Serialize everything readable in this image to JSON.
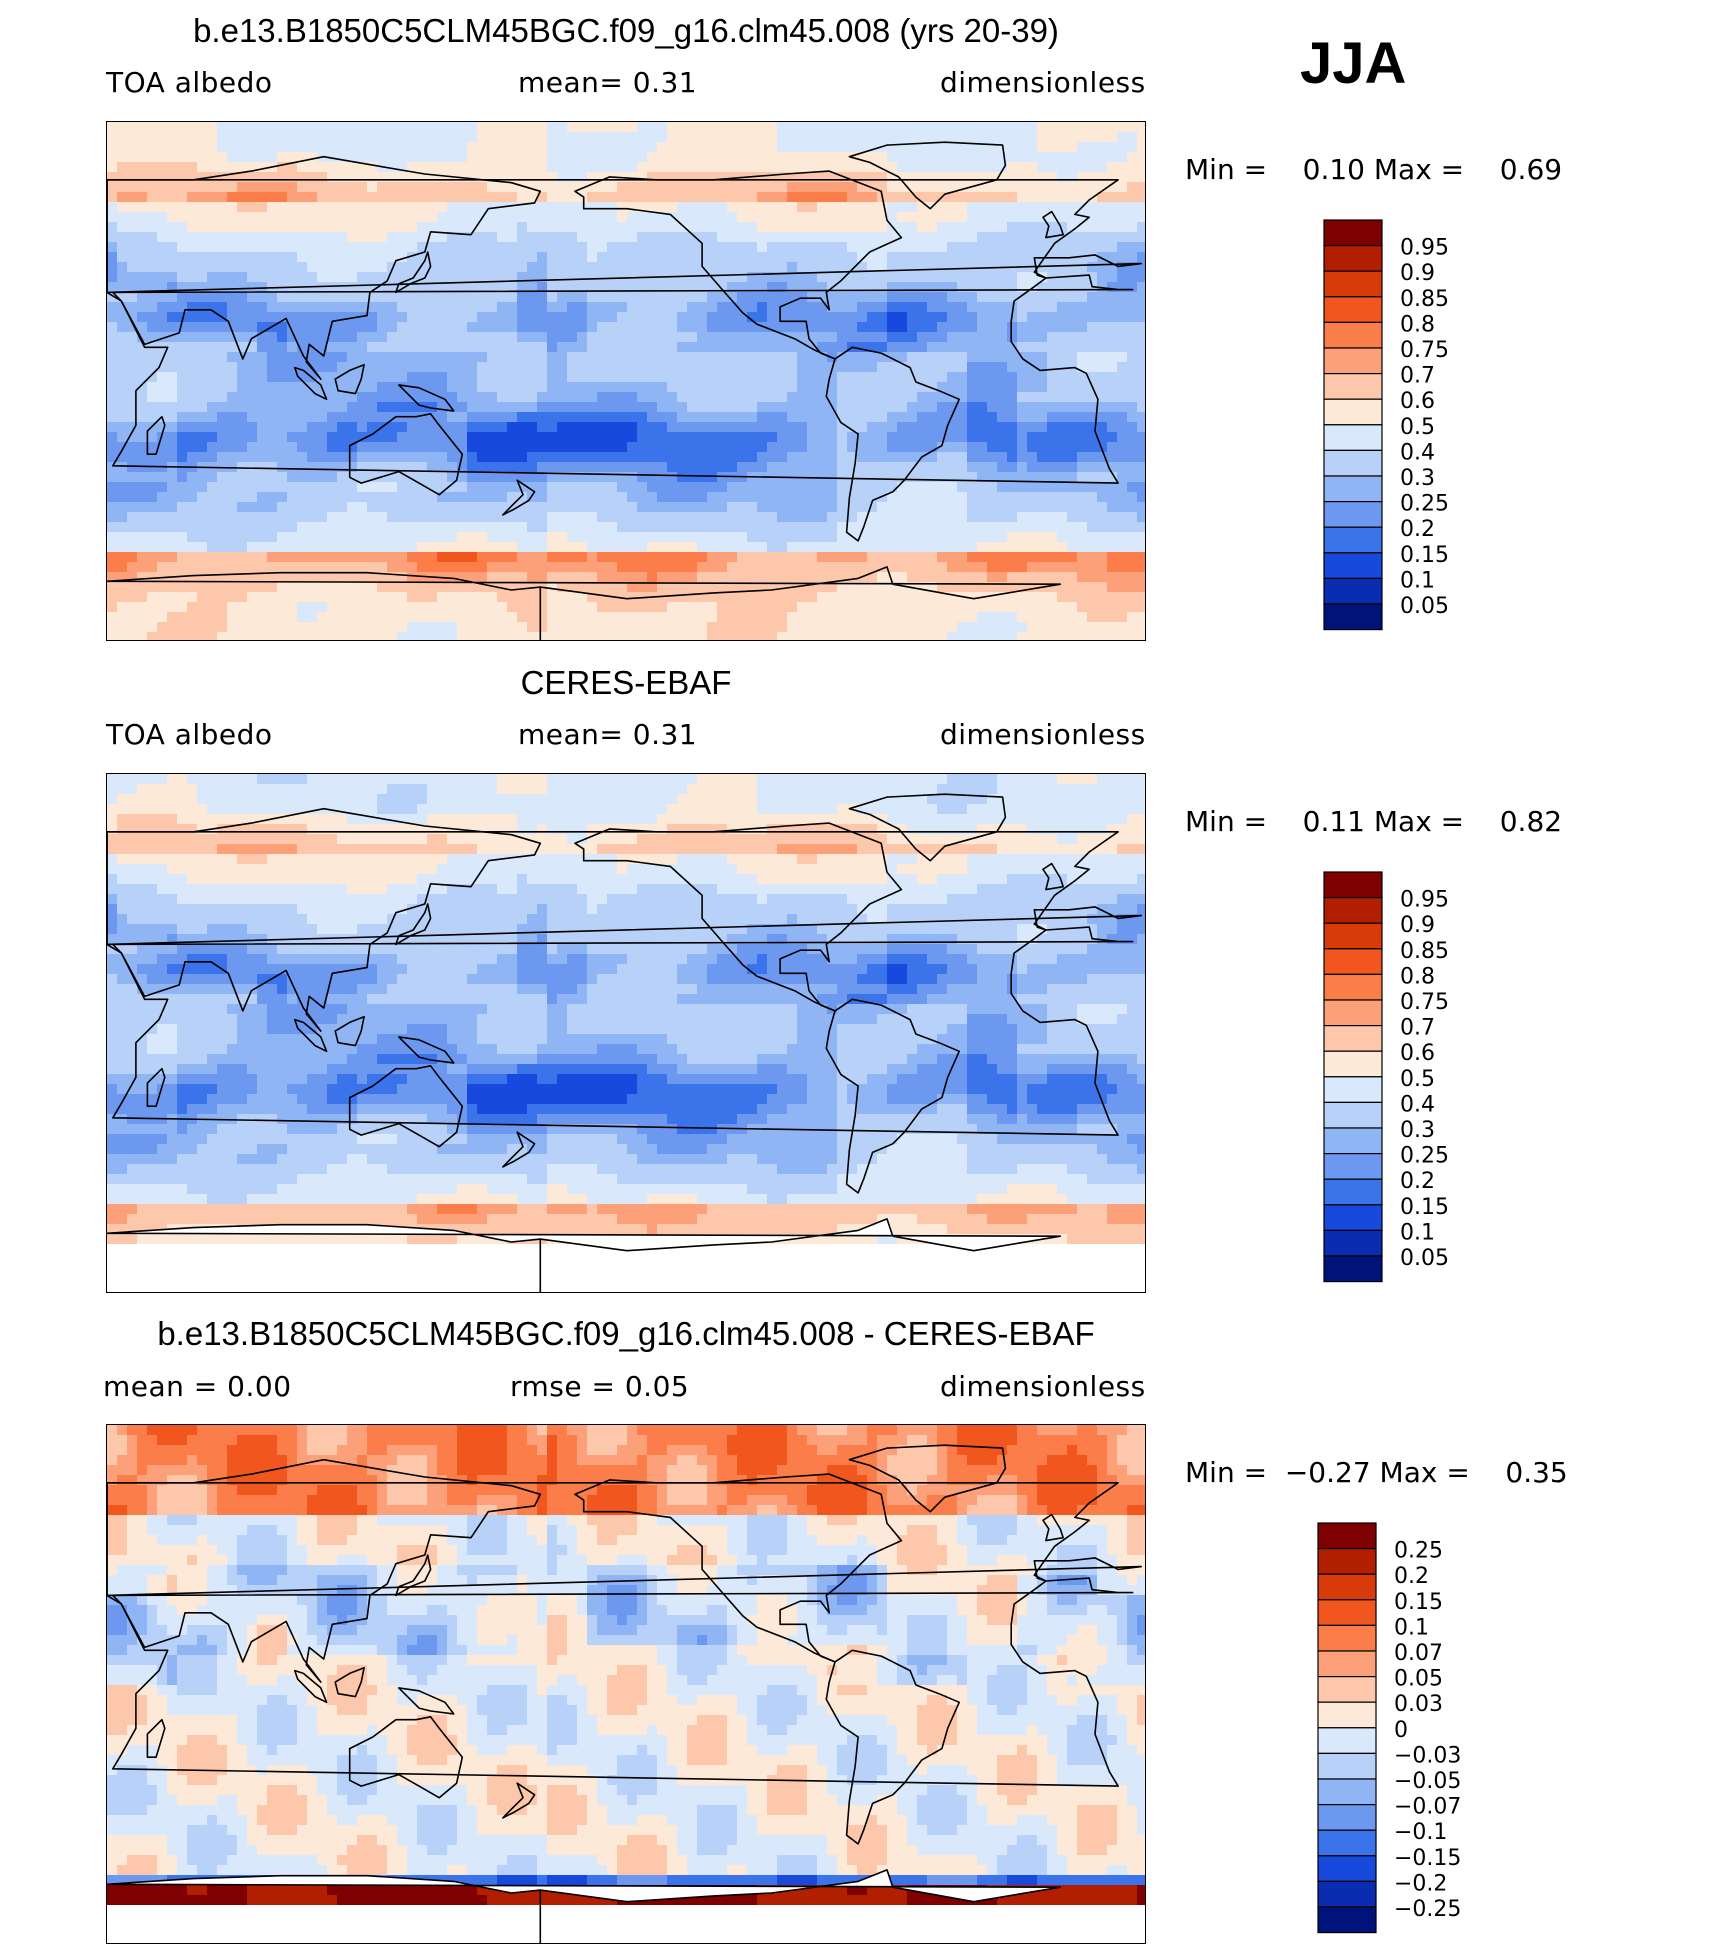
{
  "season": "JJA",
  "panels": [
    {
      "title": "b.e13.B1850C5CLM45BGC.f09_g16.clm45.008 (yrs 20-39)",
      "left_label": "TOA albedo",
      "mid_label": "mean=    0.31",
      "right_label": "dimensionless",
      "minmax": "Min =    0.10 Max =    0.69",
      "kind": "abs"
    },
    {
      "title": "CERES-EBAF",
      "left_label": "TOA albedo",
      "mid_label": "mean=    0.31",
      "right_label": "dimensionless",
      "minmax": "Min =    0.11 Max =    0.82",
      "kind": "abs"
    },
    {
      "title": "b.e13.B1850C5CLM45BGC.f09_g16.clm45.008 - CERES-EBAF",
      "left_label": "mean =    0.00",
      "mid_label": "rmse =    0.05",
      "right_label": "dimensionless",
      "minmax": "Min =  −0.27 Max =    0.35",
      "kind": "diff"
    }
  ],
  "colorbar_abs": {
    "labels": [
      "0.95",
      "0.9",
      "0.85",
      "0.8",
      "0.75",
      "0.7",
      "0.6",
      "0.5",
      "0.4",
      "0.3",
      "0.25",
      "0.2",
      "0.15",
      "0.1",
      "0.05"
    ],
    "colors": [
      "#7f0000",
      "#b21f00",
      "#d93a0a",
      "#f0561d",
      "#fa7d4a",
      "#fca07a",
      "#fdc7ab",
      "#fde9d7",
      "#d9e8fb",
      "#b7d1f8",
      "#90b5f4",
      "#6c98ef",
      "#3b74ea",
      "#1649dc",
      "#0a2cb0",
      "#00137a"
    ]
  },
  "colorbar_diff": {
    "labels": [
      "0.25",
      "0.2",
      "0.15",
      "0.1",
      "0.07",
      "0.05",
      "0.03",
      "0",
      "−0.03",
      "−0.05",
      "−0.07",
      "−0.1",
      "−0.15",
      "−0.2",
      "−0.25"
    ],
    "colors": [
      "#7f0000",
      "#b21f00",
      "#d93a0a",
      "#f0561d",
      "#fa7d4a",
      "#fca07a",
      "#fdc7ab",
      "#fde9d7",
      "#d9e8fb",
      "#b7d1f8",
      "#90b5f4",
      "#6c98ef",
      "#3b74ea",
      "#1649dc",
      "#0a2cb0",
      "#00137a"
    ]
  }
}
